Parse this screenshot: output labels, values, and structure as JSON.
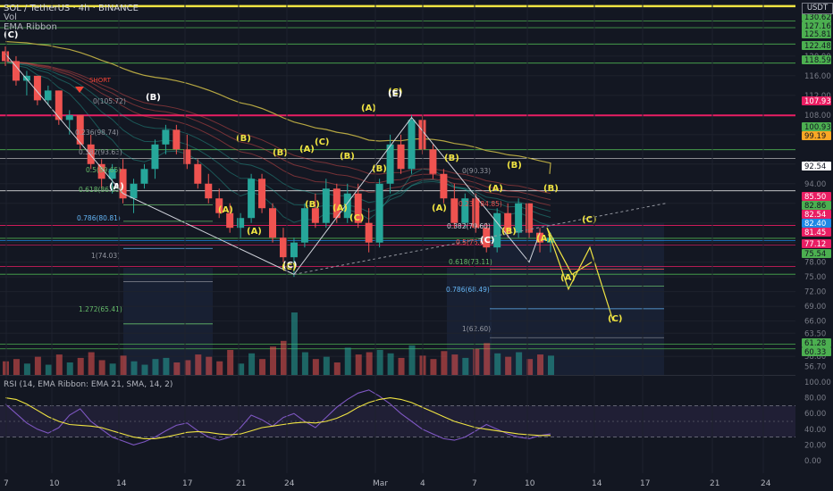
{
  "header": {
    "symbol": "SOL / TetherUS · 4h · BINANCE",
    "vol": "Vol",
    "ema": "EMA Ribbon",
    "currency": "USDT",
    "rsi": "RSI (14, EMA Ribbon: EMA 21, SMA, 14, 2)"
  },
  "colors": {
    "bg": "#131722",
    "up": "#26a69a",
    "down": "#ef5350",
    "wave": "#f0e442",
    "fib_green": "#66bb6a",
    "fib_blue": "#64b5f6",
    "red_line": "#e91e63",
    "ma": "#b5a642"
  },
  "price_axis": {
    "ticks": [
      "120.00",
      "116.00",
      "112.00",
      "108.00",
      "104.00",
      "98.00",
      "94.00",
      "90.00",
      "86.00",
      "82.00",
      "78.00",
      "75.00",
      "72.00",
      "69.00",
      "66.00",
      "63.50",
      "58.80",
      "56.70"
    ],
    "badges": [
      {
        "label": "130.62",
        "color": "#4caf50"
      },
      {
        "label": "127.16",
        "color": "#4caf50"
      },
      {
        "label": "125.81",
        "color": "#4caf50"
      },
      {
        "label": "122.48",
        "color": "#4caf50"
      },
      {
        "label": "118.59",
        "color": "#4caf50"
      },
      {
        "label": "107.93",
        "color": "#e91e63"
      },
      {
        "label": "100.93",
        "color": "#4caf50"
      },
      {
        "label": "99.19",
        "color": "#f9a825"
      },
      {
        "label": "92.54",
        "color": "#ffffff"
      },
      {
        "label": "85.50",
        "color": "#e91e63"
      },
      {
        "label": "82.86",
        "color": "#4caf50"
      },
      {
        "label": "82.54",
        "color": "#e91e63"
      },
      {
        "label": "82.40",
        "color": "#1e88e5"
      },
      {
        "label": "81.45",
        "color": "#e91e63"
      },
      {
        "label": "77.12",
        "color": "#e91e63"
      },
      {
        "label": "75.54",
        "color": "#4caf50"
      },
      {
        "label": "61.28",
        "color": "#4caf50"
      },
      {
        "label": "60.33",
        "color": "#4caf50"
      }
    ]
  },
  "rsi_axis": {
    "ticks": [
      "100.00",
      "80.00",
      "60.00",
      "40.00",
      "20.00",
      "0.00"
    ]
  },
  "time_axis": {
    "ticks": [
      "7",
      "10",
      "14",
      "17",
      "21",
      "24",
      "Mar",
      "4",
      "7",
      "10",
      "14",
      "17",
      "21",
      "24"
    ]
  },
  "chart_data": {
    "type": "candlestick",
    "title": "SOL / TetherUS · 4h · BINANCE",
    "ohlc": [
      [
        121,
        122,
        118,
        119
      ],
      [
        119,
        120,
        114,
        115
      ],
      [
        115,
        117,
        112,
        116
      ],
      [
        116,
        116,
        110,
        111
      ],
      [
        111,
        114,
        110,
        113
      ],
      [
        113,
        113,
        106,
        107
      ],
      [
        107,
        109,
        104,
        108
      ],
      [
        108,
        108,
        101,
        102
      ],
      [
        102,
        104,
        97,
        98
      ],
      [
        98,
        99,
        93,
        95
      ],
      [
        95,
        98,
        92,
        97
      ],
      [
        97,
        99,
        90,
        91
      ],
      [
        91,
        95,
        88,
        94
      ],
      [
        94,
        98,
        93,
        97
      ],
      [
        97,
        103,
        95,
        102
      ],
      [
        102,
        106,
        100,
        105
      ],
      [
        105,
        106,
        100,
        101
      ],
      [
        101,
        104,
        97,
        98
      ],
      [
        98,
        99,
        93,
        94
      ],
      [
        94,
        96,
        90,
        91
      ],
      [
        91,
        93,
        87,
        88
      ],
      [
        88,
        90,
        84,
        85
      ],
      [
        85,
        88,
        83,
        87
      ],
      [
        87,
        96,
        86,
        95
      ],
      [
        95,
        96,
        88,
        89
      ],
      [
        89,
        90,
        82,
        83
      ],
      [
        83,
        85,
        78,
        79
      ],
      [
        79,
        83,
        75,
        82
      ],
      [
        82,
        90,
        81,
        89
      ],
      [
        89,
        92,
        85,
        86
      ],
      [
        86,
        95,
        85,
        93
      ],
      [
        93,
        94,
        86,
        87
      ],
      [
        87,
        94,
        86,
        92
      ],
      [
        92,
        94,
        85,
        86
      ],
      [
        86,
        89,
        80,
        82
      ],
      [
        82,
        95,
        81,
        94
      ],
      [
        94,
        104,
        92,
        102
      ],
      [
        102,
        104,
        96,
        97
      ],
      [
        97,
        108,
        96,
        107
      ],
      [
        107,
        108,
        100,
        101
      ],
      [
        101,
        102,
        95,
        96
      ],
      [
        96,
        97,
        90,
        91
      ],
      [
        91,
        94,
        85,
        86
      ],
      [
        86,
        92,
        85,
        91
      ],
      [
        91,
        92,
        84,
        85
      ],
      [
        85,
        86,
        80,
        81
      ],
      [
        81,
        89,
        80,
        88
      ],
      [
        88,
        90,
        83,
        84
      ],
      [
        84,
        91,
        83,
        90
      ],
      [
        90,
        90,
        83,
        84
      ],
      [
        84,
        85,
        80,
        82
      ],
      [
        82,
        84,
        80,
        83
      ]
    ],
    "volume": [
      12,
      14,
      10,
      16,
      9,
      18,
      11,
      15,
      20,
      13,
      10,
      17,
      12,
      9,
      14,
      15,
      11,
      13,
      18,
      16,
      12,
      22,
      10,
      19,
      14,
      25,
      30,
      55,
      20,
      14,
      16,
      11,
      24,
      18,
      20,
      22,
      19,
      15,
      26,
      17,
      14,
      21,
      18,
      15,
      23,
      28,
      19,
      16,
      20,
      14,
      18,
      17
    ],
    "rsi": [
      72,
      60,
      48,
      40,
      35,
      42,
      58,
      66,
      50,
      40,
      30,
      25,
      20,
      24,
      30,
      38,
      45,
      48,
      38,
      30,
      26,
      30,
      42,
      58,
      52,
      44,
      55,
      60,
      50,
      42,
      55,
      68,
      78,
      86,
      90,
      82,
      72,
      60,
      50,
      40,
      34,
      28,
      26,
      30,
      38,
      46,
      40,
      34,
      30,
      28,
      32,
      34
    ],
    "rsi_ma": [
      80,
      78,
      72,
      64,
      56,
      50,
      46,
      45,
      44,
      42,
      38,
      34,
      30,
      28,
      28,
      30,
      33,
      36,
      37,
      36,
      34,
      33,
      34,
      38,
      42,
      44,
      46,
      48,
      49,
      48,
      50,
      54,
      60,
      68,
      74,
      78,
      80,
      78,
      74,
      68,
      62,
      56,
      50,
      46,
      42,
      40,
      38,
      36,
      34,
      33,
      32,
      32
    ],
    "elliott_labels": [
      "(C)",
      "(A)",
      "(B)",
      "(C)",
      "(A)",
      "(B)",
      "(A)",
      "(B)",
      "(C)",
      "(A)",
      "(B)",
      "(C)",
      "(A)",
      "(B)",
      "(C)",
      "(A)",
      "(B)",
      "(C)",
      "(A)",
      "(B)",
      "(E)",
      "(A)",
      "(B)",
      "(C)",
      "(B)",
      "(A)",
      "(B)",
      "(C)"
    ],
    "fib_levels_1": [
      "0(105.72)",
      "0.236(98.74)",
      "0.382(93.63)",
      "0.5(89.65)",
      "0.618(86.33)",
      "0.786(80.81)",
      "1(74.03)",
      "1.272(65.41)"
    ],
    "fib_levels_2": [
      "0(90.33)",
      "0.236(84.85)",
      "0.382(79.60)",
      "0.5(76.60)",
      "0.618(73.11)",
      "0.786(68.49)",
      "1(62.60)"
    ],
    "annotations": [
      "SHORT"
    ]
  }
}
